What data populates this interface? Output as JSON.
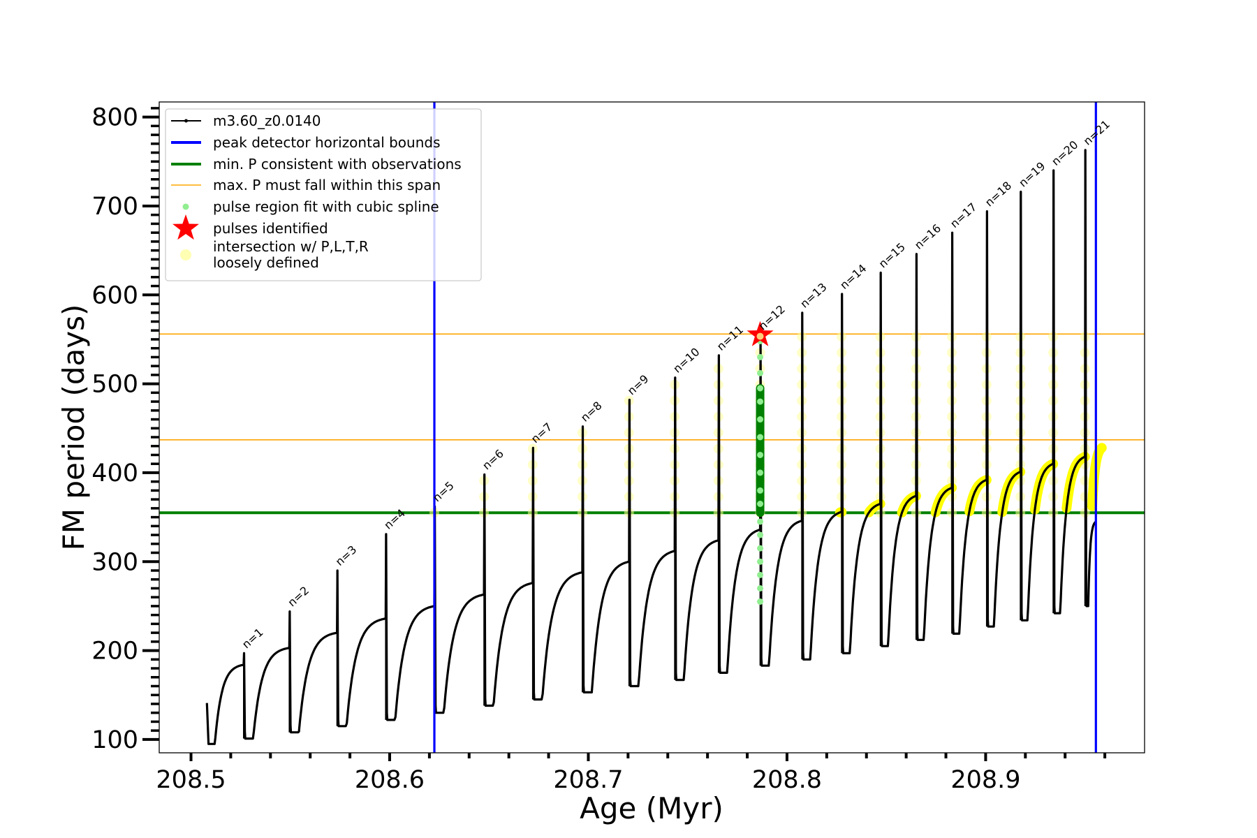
{
  "chart_data": {
    "type": "line",
    "xlabel": "Age (Myr)",
    "ylabel": "FM period (days)",
    "xlim": [
      208.484,
      208.98
    ],
    "ylim": [
      85,
      817
    ],
    "xticks": [
      208.5,
      208.6,
      208.7,
      208.8,
      208.9
    ],
    "xtick_labels": [
      "208.5",
      "208.6",
      "208.7",
      "208.8",
      "208.9"
    ],
    "yticks": [
      100,
      200,
      300,
      400,
      500,
      600,
      700,
      800
    ],
    "ytick_labels": [
      "100",
      "200",
      "300",
      "400",
      "500",
      "600",
      "700",
      "800"
    ],
    "grid": false,
    "legend_position": "top-left",
    "legend": [
      {
        "label": "m3.60_z0.0140",
        "kind": "line-marker",
        "color": "#000000"
      },
      {
        "label": "peak detector horizontal bounds",
        "kind": "line",
        "color": "#0000ff"
      },
      {
        "label": "min. P consistent with observations",
        "kind": "line",
        "color": "#008000"
      },
      {
        "label": "max. P must fall within this span",
        "kind": "thin-line",
        "color": "#ffa500"
      },
      {
        "label": "pulse region fit with cubic spline",
        "kind": "dot",
        "color": "#90ee90"
      },
      {
        "label": "pulses identified",
        "kind": "star",
        "color": "#ff0000"
      },
      {
        "label": "intersection w/ P,L,T,R",
        "label2": "loosely defined",
        "kind": "big-dot",
        "color": "#ffffb3"
      }
    ],
    "vertical_lines": [
      {
        "x": 208.6225,
        "color": "#0000ff",
        "name": "peak detector horizontal bounds"
      },
      {
        "x": 208.9555,
        "color": "#0000ff",
        "name": "peak detector horizontal bounds"
      }
    ],
    "horizontal_lines": [
      {
        "y": 355,
        "color": "#008000",
        "name": "min. P consistent with observations"
      },
      {
        "y": 437,
        "color": "#ffa500",
        "name": "max. P must fall within this span"
      },
      {
        "y": 556,
        "color": "#ffa500",
        "name": "max. P must fall within this span"
      }
    ],
    "series": [
      {
        "name": "m3.60_z0.0140",
        "color": "#000000",
        "start": {
          "x": 208.508,
          "y": 141,
          "min": 95
        },
        "pulses": [
          {
            "n": 1,
            "x": 208.5265,
            "pre": 184,
            "peak": 197,
            "min": 101,
            "label": "n=1"
          },
          {
            "n": 2,
            "x": 208.5495,
            "pre": 203,
            "peak": 244,
            "min": 108,
            "label": "n=2"
          },
          {
            "n": 3,
            "x": 208.5735,
            "pre": 220,
            "peak": 290,
            "min": 115,
            "label": "n=3"
          },
          {
            "n": 4,
            "x": 208.598,
            "pre": 236,
            "peak": 331,
            "min": 122,
            "label": "n=4"
          },
          {
            "n": 5,
            "x": 208.6225,
            "pre": 250,
            "peak": 362,
            "min": 130,
            "label": "n=5"
          },
          {
            "n": 6,
            "x": 208.6475,
            "pre": 263,
            "peak": 398,
            "min": 138,
            "label": "n=6"
          },
          {
            "n": 7,
            "x": 208.672,
            "pre": 276,
            "peak": 428,
            "min": 145,
            "label": "n=7"
          },
          {
            "n": 8,
            "x": 208.697,
            "pre": 288,
            "peak": 452,
            "min": 153,
            "label": "n=8"
          },
          {
            "n": 9,
            "x": 208.7205,
            "pre": 300,
            "peak": 482,
            "min": 160,
            "label": "n=9"
          },
          {
            "n": 10,
            "x": 208.7435,
            "pre": 312,
            "peak": 507,
            "min": 167,
            "label": "n=10"
          },
          {
            "n": 11,
            "x": 208.7655,
            "pre": 324,
            "peak": 532,
            "min": 175,
            "label": "n=11"
          },
          {
            "n": 12,
            "x": 208.7865,
            "pre": 336,
            "peak": 555,
            "min": 183,
            "label": "n=12"
          },
          {
            "n": 13,
            "x": 208.8075,
            "pre": 346,
            "peak": 580,
            "min": 190,
            "label": "n=13"
          },
          {
            "n": 14,
            "x": 208.8275,
            "pre": 356,
            "peak": 601,
            "min": 197,
            "label": "n=14"
          },
          {
            "n": 15,
            "x": 208.847,
            "pre": 365,
            "peak": 625,
            "min": 205,
            "label": "n=15"
          },
          {
            "n": 16,
            "x": 208.865,
            "pre": 374,
            "peak": 646,
            "min": 212,
            "label": "n=16"
          },
          {
            "n": 17,
            "x": 208.883,
            "pre": 383,
            "peak": 670,
            "min": 219,
            "label": "n=17"
          },
          {
            "n": 18,
            "x": 208.9005,
            "pre": 392,
            "peak": 694,
            "min": 227,
            "label": "n=18"
          },
          {
            "n": 19,
            "x": 208.9175,
            "pre": 401,
            "peak": 716,
            "min": 234,
            "label": "n=19"
          },
          {
            "n": 20,
            "x": 208.934,
            "pre": 410,
            "peak": 740,
            "min": 242,
            "label": "n=20"
          },
          {
            "n": 21,
            "x": 208.95,
            "pre": 418,
            "peak": 763,
            "min": 250,
            "label": "n=21"
          }
        ],
        "end": {
          "x": 208.9555,
          "y": 345
        }
      }
    ],
    "pulse_region_fit": {
      "name": "pulse region fit with cubic spline",
      "x": 208.7865,
      "dark_range": [
        355,
        495
      ],
      "light_points": [
        255,
        270,
        285,
        300,
        315,
        330,
        345,
        365,
        380,
        400,
        420,
        440,
        460,
        480,
        495,
        512,
        530,
        548
      ]
    },
    "pulses_identified": [
      {
        "x": 208.7865,
        "y": 555,
        "name": "pulses identified"
      }
    ],
    "intersection_regions": {
      "name": "intersection w/ P,L,T,R loosely defined",
      "pulse_columns": [
        5,
        6,
        7,
        8,
        9,
        10,
        11,
        12,
        13,
        14,
        15,
        16,
        17,
        18,
        19,
        20,
        21
      ],
      "arcs_from_pulse": 13,
      "y_min": 355
    }
  }
}
